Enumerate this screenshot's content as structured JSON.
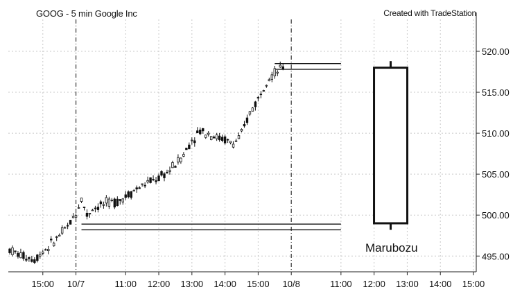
{
  "header": {
    "title": "GOOG - 5 min  Google Inc",
    "credit": "Created with TradeStation"
  },
  "annotation": "Marubozu",
  "chart_data": {
    "type": "candlestick",
    "title": "GOOG - 5 min  Google Inc",
    "xlabel": "",
    "ylabel": "",
    "ylim": [
      493.8,
      523.5
    ],
    "y_ticks": [
      495,
      500,
      505,
      510,
      515,
      520
    ],
    "y_tick_labels": [
      "495.00",
      "500.00",
      "505.00",
      "510.00",
      "515.00",
      "520.00"
    ],
    "x_ticks": [
      {
        "time": "10/6 15:00",
        "label": "15:00"
      },
      {
        "time": "10/7 09:30",
        "label": "10/7"
      },
      {
        "time": "10/7 11:00",
        "label": "11:00"
      },
      {
        "time": "10/7 12:00",
        "label": "12:00"
      },
      {
        "time": "10/7 13:00",
        "label": "13:00"
      },
      {
        "time": "10/7 14:00",
        "label": "14:00"
      },
      {
        "time": "10/7 15:00",
        "label": "15:00"
      },
      {
        "time": "10/8 09:30",
        "label": "10/8"
      },
      {
        "time": "10/8 11:00",
        "label": "11:00"
      },
      {
        "time": "10/8 12:00",
        "label": "12:00"
      },
      {
        "time": "10/8 13:00",
        "label": "13:00"
      },
      {
        "time": "10/8 14:00",
        "label": "14:00"
      },
      {
        "time": "10/8 15:00",
        "label": "15:00"
      }
    ],
    "session_breaks": [
      "10/7 09:30",
      "10/8 09:30"
    ],
    "grid": true,
    "price_series": [
      {
        "time": "10/6 14:00",
        "price": 495.8
      },
      {
        "time": "10/6 14:15",
        "price": 495.2
      },
      {
        "time": "10/6 14:30",
        "price": 494.9
      },
      {
        "time": "10/6 14:45",
        "price": 494.6
      },
      {
        "time": "10/6 15:00",
        "price": 495.6
      },
      {
        "time": "10/6 15:15",
        "price": 496.4
      },
      {
        "time": "10/6 15:30",
        "price": 497.5
      },
      {
        "time": "10/6 15:45",
        "price": 498.6
      },
      {
        "time": "10/7 09:30",
        "price": 500.2
      },
      {
        "time": "10/7 09:40",
        "price": 502.0
      },
      {
        "time": "10/7 09:50",
        "price": 500.0
      },
      {
        "time": "10/7 10:00",
        "price": 500.8
      },
      {
        "time": "10/7 10:15",
        "price": 501.2
      },
      {
        "time": "10/7 10:30",
        "price": 501.5
      },
      {
        "time": "10/7 10:45",
        "price": 501.7
      },
      {
        "time": "10/7 11:00",
        "price": 502.3
      },
      {
        "time": "10/7 11:15",
        "price": 503.0
      },
      {
        "time": "10/7 11:30",
        "price": 503.6
      },
      {
        "time": "10/7 11:45",
        "price": 504.1
      },
      {
        "time": "10/7 12:00",
        "price": 504.5
      },
      {
        "time": "10/7 12:15",
        "price": 505.2
      },
      {
        "time": "10/7 12:30",
        "price": 506.2
      },
      {
        "time": "10/7 12:45",
        "price": 507.4
      },
      {
        "time": "10/7 13:00",
        "price": 509.2
      },
      {
        "time": "10/7 13:15",
        "price": 510.3
      },
      {
        "time": "10/7 13:30",
        "price": 510.0
      },
      {
        "time": "10/7 13:45",
        "price": 509.5
      },
      {
        "time": "10/7 14:00",
        "price": 509.2
      },
      {
        "time": "10/7 14:15",
        "price": 508.7
      },
      {
        "time": "10/7 14:30",
        "price": 509.8
      },
      {
        "time": "10/7 14:45",
        "price": 512.5
      },
      {
        "time": "10/7 15:00",
        "price": 514.2
      },
      {
        "time": "10/7 15:15",
        "price": 516.6
      },
      {
        "time": "10/7 15:30",
        "price": 517.3
      },
      {
        "time": "10/7 15:45",
        "price": 518.0
      }
    ],
    "reference_lines": [
      {
        "price_upper": 498.9,
        "price_lower": 498.2,
        "from": "10/7 09:40",
        "to": "10/8 11:00"
      },
      {
        "price_upper": 518.5,
        "price_lower": 517.8,
        "from": "10/7 15:30",
        "to": "10/8 11:00"
      }
    ],
    "marubozu_candle": {
      "time": "10/8 12:30",
      "open": 499.0,
      "high": 518.8,
      "low": 498.2,
      "close": 518.0
    }
  }
}
